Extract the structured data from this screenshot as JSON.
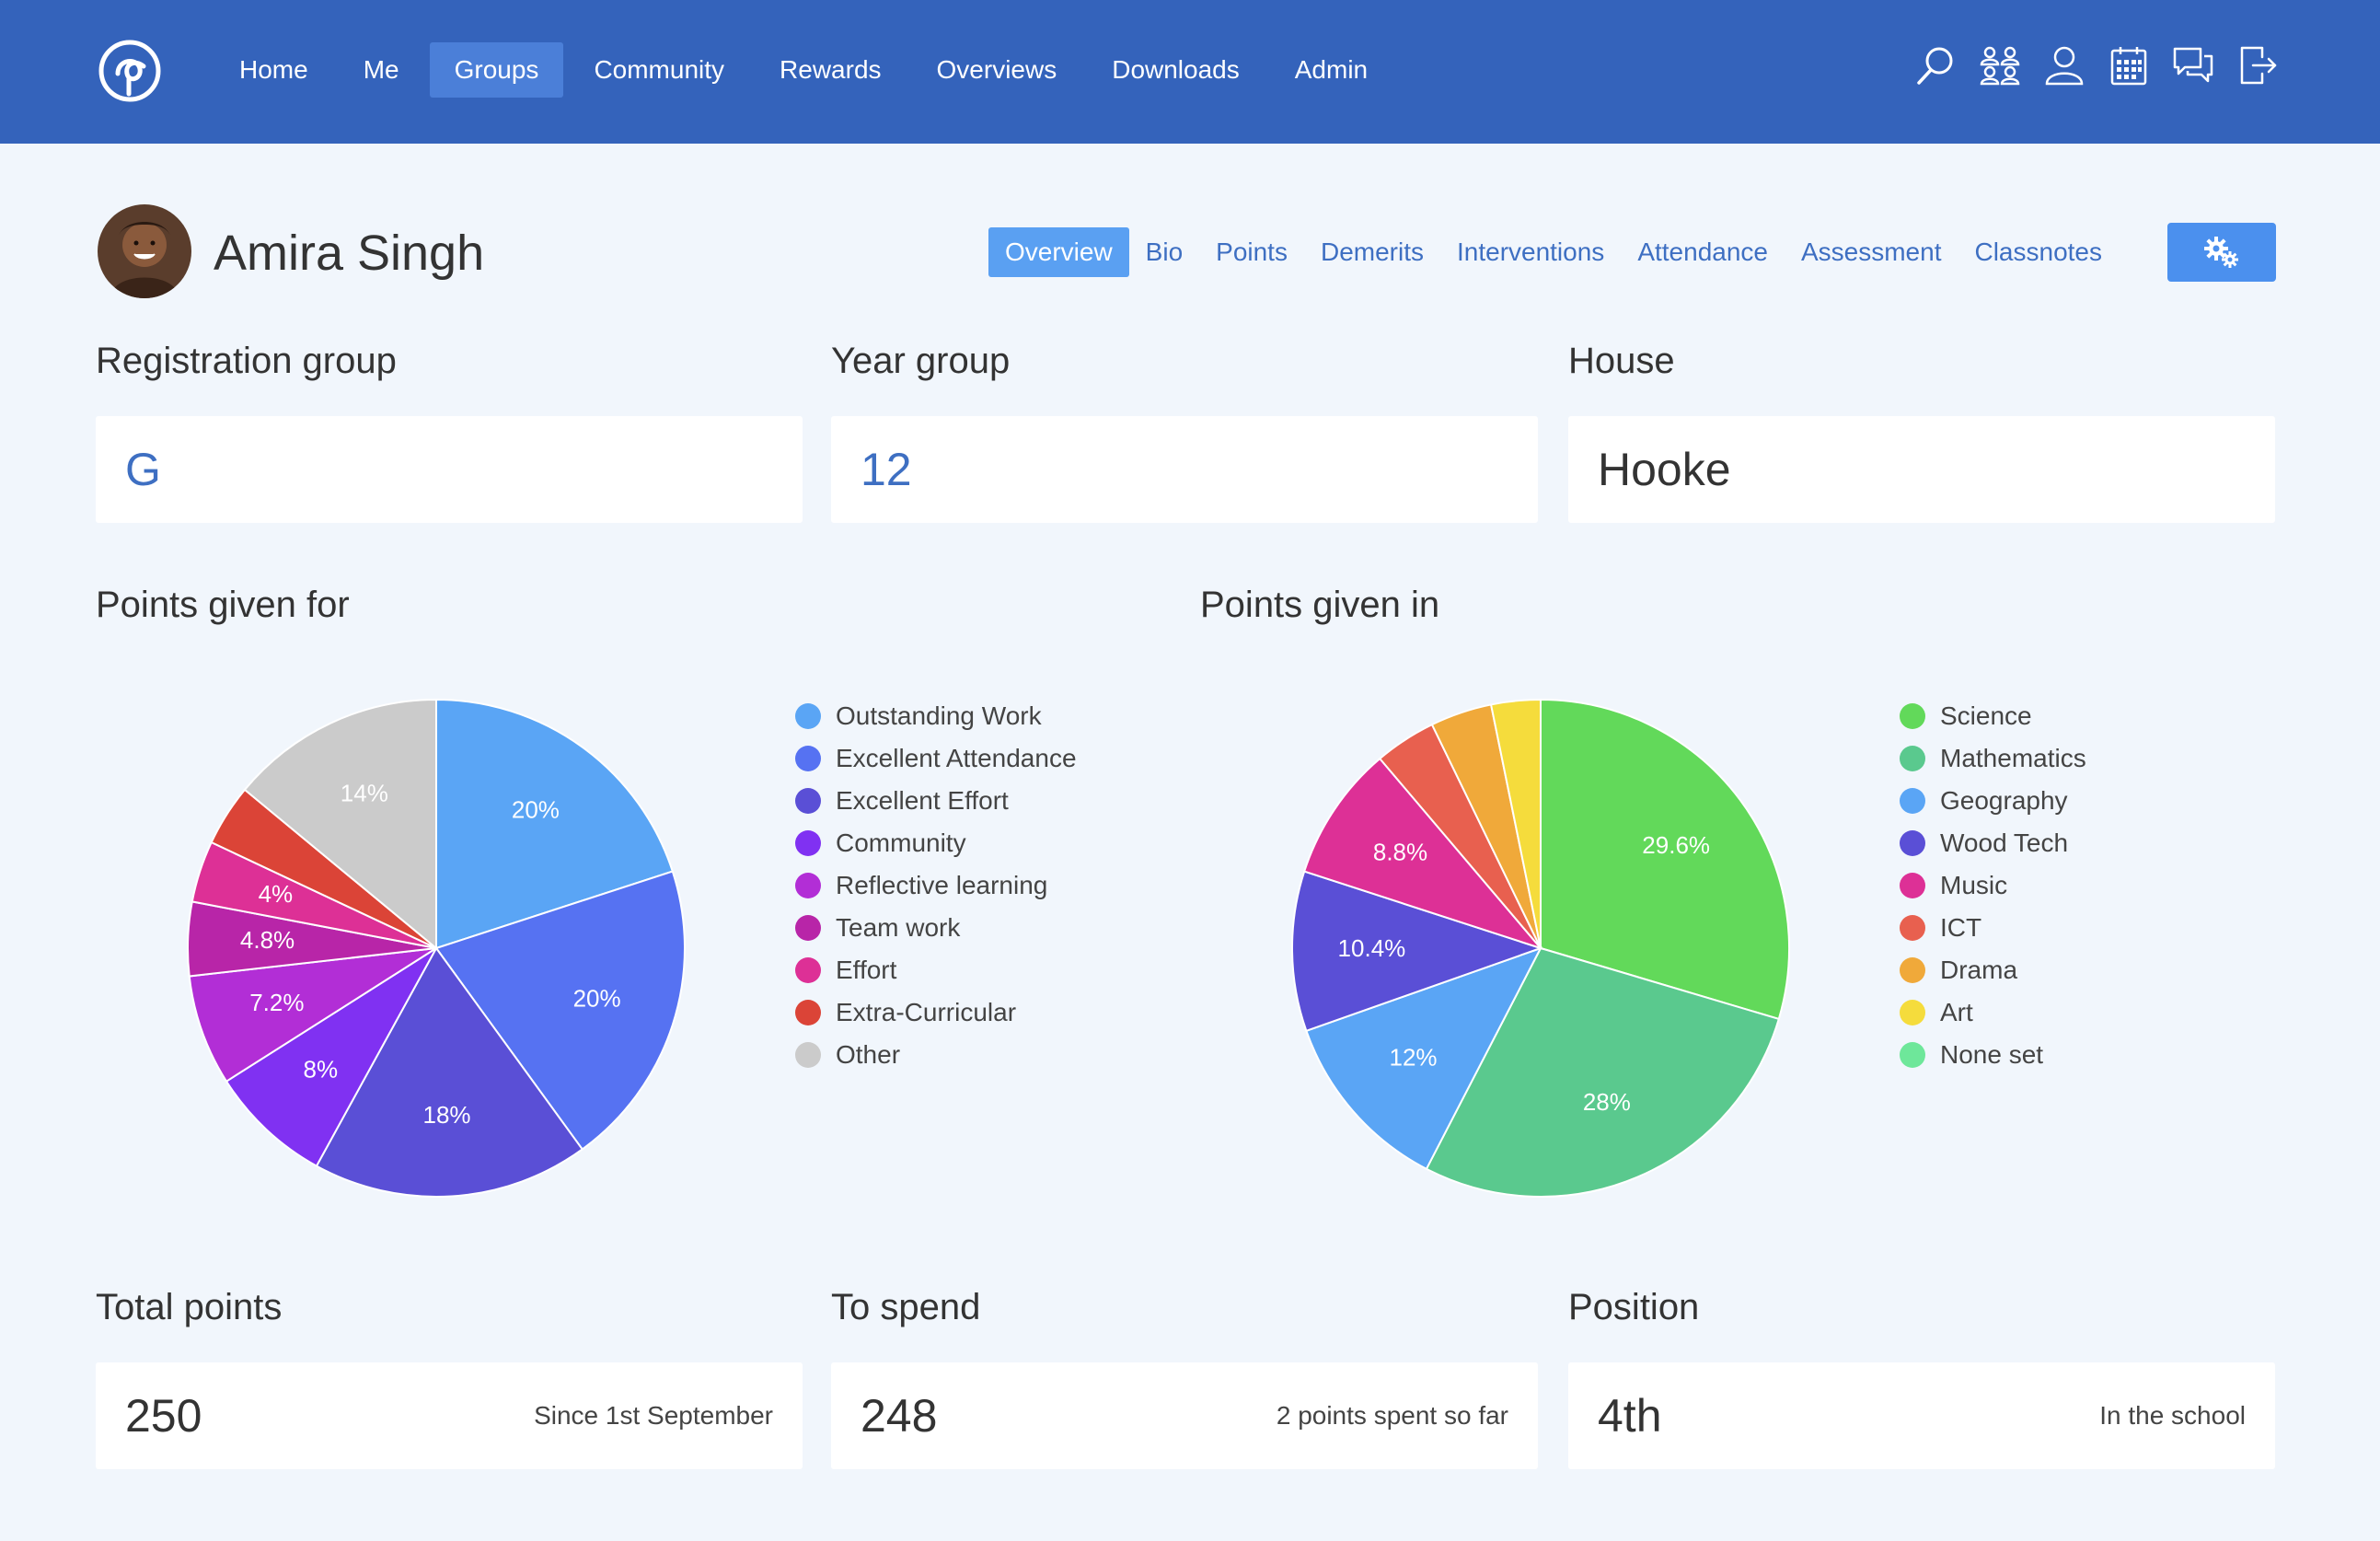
{
  "nav": {
    "items": [
      {
        "label": "Home",
        "active": false
      },
      {
        "label": "Me",
        "active": false
      },
      {
        "label": "Groups",
        "active": true
      },
      {
        "label": "Community",
        "active": false
      },
      {
        "label": "Rewards",
        "active": false
      },
      {
        "label": "Overviews",
        "active": false
      },
      {
        "label": "Downloads",
        "active": false
      },
      {
        "label": "Admin",
        "active": false
      }
    ],
    "icons": [
      "search-icon",
      "groups-icon",
      "user-icon",
      "calendar-icon",
      "messages-icon",
      "logout-icon"
    ]
  },
  "student": {
    "name": "Amira Singh"
  },
  "subnav": {
    "items": [
      {
        "label": "Overview",
        "active": true
      },
      {
        "label": "Bio",
        "active": false
      },
      {
        "label": "Points",
        "active": false
      },
      {
        "label": "Demerits",
        "active": false
      },
      {
        "label": "Interventions",
        "active": false
      },
      {
        "label": "Attendance",
        "active": false
      },
      {
        "label": "Assessment",
        "active": false
      },
      {
        "label": "Classnotes",
        "active": false
      }
    ],
    "settings_icon": "gears-icon"
  },
  "info_cards": {
    "registration": {
      "label": "Registration group",
      "value": "G"
    },
    "year": {
      "label": "Year group",
      "value": "12"
    },
    "house": {
      "label": "House",
      "value": "Hooke"
    }
  },
  "stats_cards": {
    "total": {
      "label": "Total points",
      "value": "250",
      "note": "Since 1st September"
    },
    "spend": {
      "label": "To spend",
      "value": "248",
      "note": "2 points spent so far"
    },
    "position": {
      "label": "Position",
      "value": "4th",
      "note": "In the school"
    }
  },
  "chart_data": [
    {
      "type": "pie",
      "title": "Points given for",
      "slices": [
        {
          "name": "Outstanding Work",
          "value": 20,
          "label": "20%",
          "color": "#5aa5f5"
        },
        {
          "name": "Excellent Attendance",
          "value": 20,
          "label": "20%",
          "color": "#5672f2"
        },
        {
          "name": "Excellent Effort",
          "value": 18,
          "label": "18%",
          "color": "#5a4fd6"
        },
        {
          "name": "Community",
          "value": 8,
          "label": "8%",
          "color": "#8031f2"
        },
        {
          "name": "Reflective learning",
          "value": 7.2,
          "label": "7.2%",
          "color": "#b22ed6"
        },
        {
          "name": "Team work",
          "value": 4.8,
          "label": "4.8%",
          "color": "#b825a8"
        },
        {
          "name": "Effort",
          "value": 4,
          "label": "4%",
          "color": "#dd3096"
        },
        {
          "name": "Extra-Curricular",
          "value": 4,
          "label": "",
          "color": "#db4437"
        },
        {
          "name": "Other",
          "value": 14,
          "label": "14%",
          "color": "#cbcbcb"
        }
      ],
      "legend_position": "right"
    },
    {
      "type": "pie",
      "title": "Points given in",
      "slices": [
        {
          "name": "Science",
          "value": 29.6,
          "label": "29.6%",
          "color": "#62d95a"
        },
        {
          "name": "Mathematics",
          "value": 28,
          "label": "28%",
          "color": "#5ac98e"
        },
        {
          "name": "Geography",
          "value": 12,
          "label": "12%",
          "color": "#5aa5f5"
        },
        {
          "name": "Wood Tech",
          "value": 10.4,
          "label": "10.4%",
          "color": "#5a4fd6"
        },
        {
          "name": "Music",
          "value": 8.8,
          "label": "8.8%",
          "color": "#dd3096"
        },
        {
          "name": "ICT",
          "value": 4,
          "label": "",
          "color": "#e8604f"
        },
        {
          "name": "Drama",
          "value": 4,
          "label": "",
          "color": "#f0a93a"
        },
        {
          "name": "Art",
          "value": 3.2,
          "label": "",
          "color": "#f5dc3c"
        },
        {
          "name": "None set",
          "value": 0,
          "label": "",
          "color": "#6ee79a"
        }
      ],
      "legend_position": "right"
    }
  ]
}
